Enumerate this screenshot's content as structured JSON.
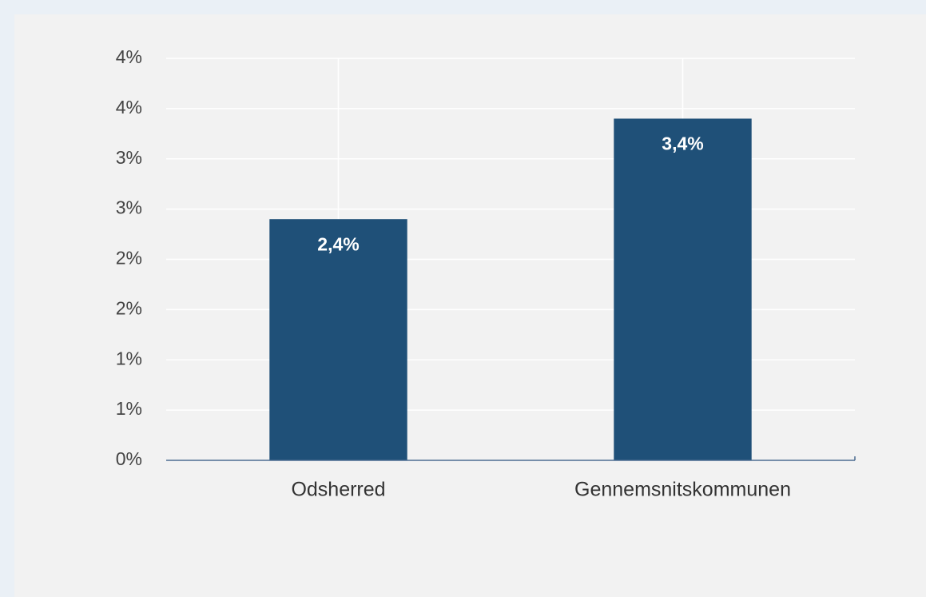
{
  "chart_data": {
    "type": "bar",
    "categories": [
      "Odsherred",
      "Gennemsnitskommunen"
    ],
    "values": [
      2.4,
      3.4
    ],
    "value_labels": [
      "2,4%",
      "3,4%"
    ],
    "color": "#1f5078",
    "ylim": [
      0,
      4
    ],
    "yticks": [
      {
        "value": 0,
        "label": "0%"
      },
      {
        "value": 0.5,
        "label": "1%"
      },
      {
        "value": 1,
        "label": "1%"
      },
      {
        "value": 1.5,
        "label": "2%"
      },
      {
        "value": 2,
        "label": "2%"
      },
      {
        "value": 2.5,
        "label": "3%"
      },
      {
        "value": 3,
        "label": "3%"
      },
      {
        "value": 3.5,
        "label": "4%"
      },
      {
        "value": 4,
        "label": "4%"
      }
    ],
    "grid": true
  }
}
